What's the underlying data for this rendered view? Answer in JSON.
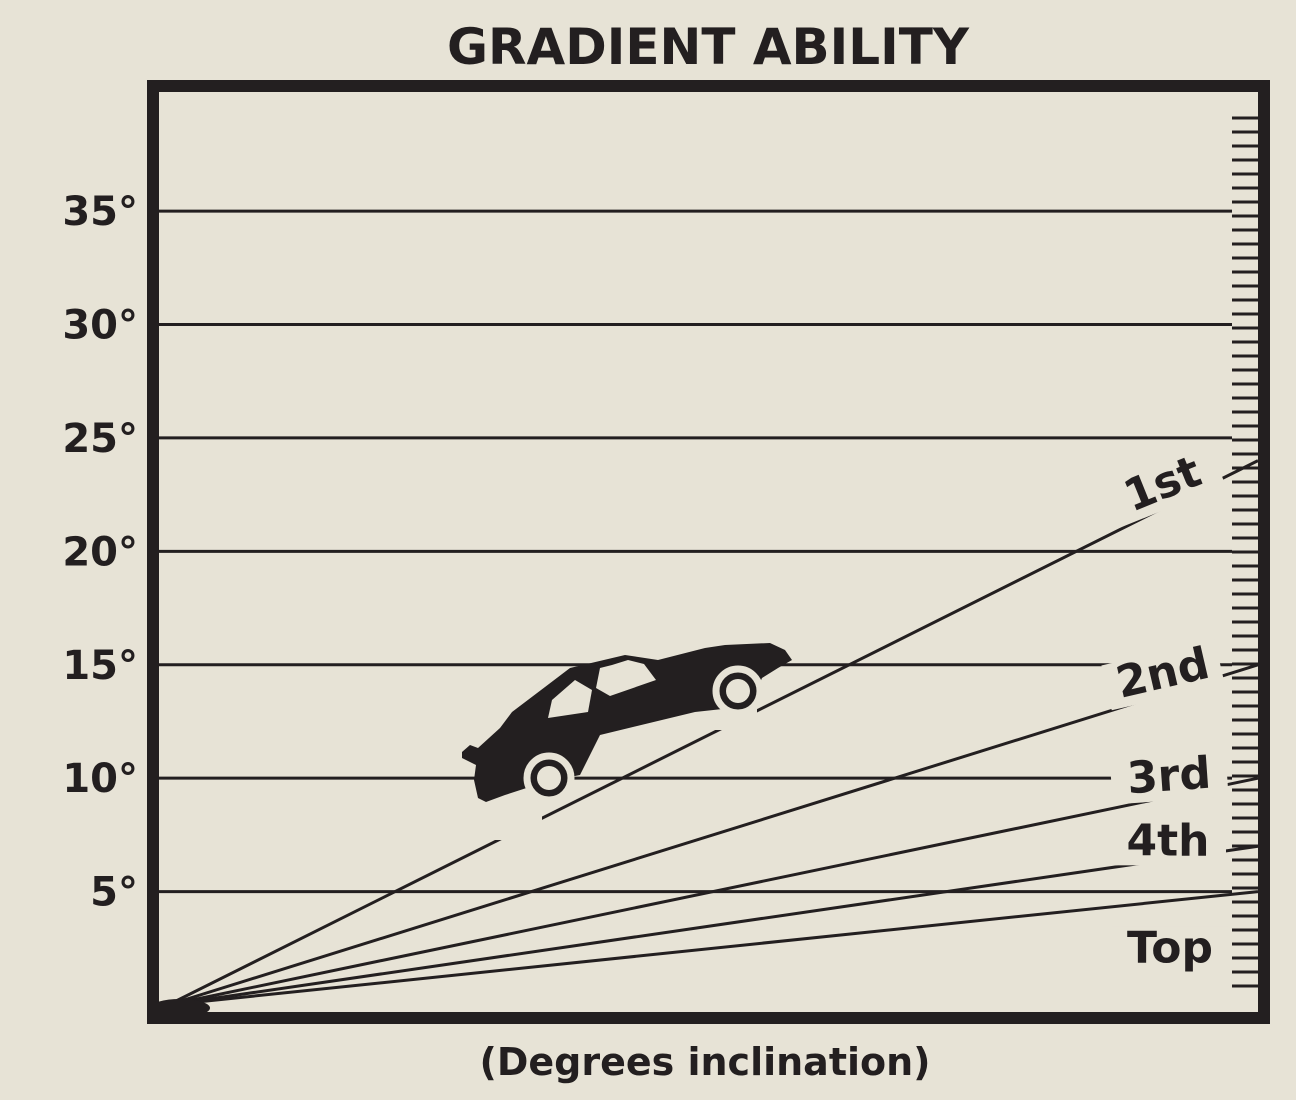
{
  "chart_data": {
    "type": "line",
    "title": "GRADIENT ABILITY",
    "xlabel": "(Degrees inclination)",
    "ylabel": "",
    "yunit": "°",
    "yticks": [
      5,
      10,
      15,
      20,
      25,
      30,
      35
    ],
    "ylim": [
      0,
      41
    ],
    "x": [
      0,
      1
    ],
    "series": [
      {
        "name": "1st",
        "values": [
          0,
          24
        ]
      },
      {
        "name": "2nd",
        "values": [
          0,
          15
        ]
      },
      {
        "name": "3rd",
        "values": [
          0,
          10
        ]
      },
      {
        "name": "4th",
        "values": [
          0,
          7
        ]
      },
      {
        "name": "Top",
        "values": [
          0,
          5
        ]
      }
    ],
    "grid": true,
    "legend": "right, inline at line ends"
  },
  "colors": {
    "background": "#e7e3d6",
    "ink": "#231f20"
  },
  "icons": {
    "car": "car-icon"
  }
}
